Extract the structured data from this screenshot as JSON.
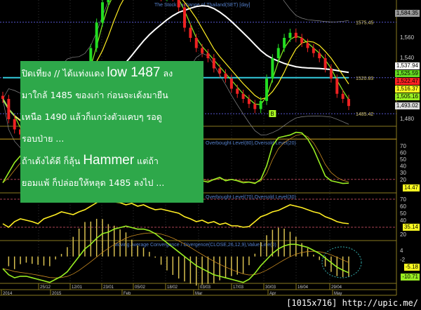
{
  "chart_data": {
    "type": "candlestick",
    "title": "The Stock Exchange of Thailand(SET) [day]",
    "x_tick_labels": [
      "25/12",
      "12/01",
      "23/01",
      "05/02",
      "18/02",
      "03/03",
      "17/03",
      "30/03",
      "16/04",
      "29/04"
    ],
    "period_labels": [
      "2014",
      "2015",
      "Feb",
      "Mar",
      "Apr",
      "May"
    ],
    "price": {
      "ylim": [
        1470,
        1600
      ],
      "y_ticks": [
        "1,560",
        "1,540",
        "1,480"
      ],
      "close": [
        1500,
        1480,
        1470,
        1465,
        1475,
        1490,
        1500,
        1505,
        1510,
        1520,
        1525,
        1530,
        1520,
        1515,
        1530,
        1550,
        1575,
        1595,
        1605,
        1610,
        1615,
        1612,
        1608,
        1610,
        1615,
        1612,
        1605,
        1600,
        1605,
        1600,
        1590,
        1570,
        1560,
        1550,
        1545,
        1540,
        1530,
        1525,
        1520,
        1510,
        1505,
        1500,
        1495,
        1490,
        1498,
        1520,
        1540,
        1550,
        1560,
        1565,
        1560,
        1555,
        1550,
        1545,
        1540,
        1530,
        1520,
        1505,
        1500,
        1493
      ],
      "levels": [
        {
          "label": "1575.45",
          "value": 1575.45
        },
        {
          "label": "1520.83",
          "value": 1520.83
        },
        {
          "label": "1485.42",
          "value": 1485.42
        }
      ],
      "value_tags": [
        {
          "label": "1,584.35",
          "value": 1584.35,
          "color": "#9a9a9a"
        },
        {
          "label": "1,537.94",
          "value": 1537.94,
          "color": "#ffffff"
        },
        {
          "label": "1,525.59",
          "value": 1525.59,
          "color": "#66dd22"
        },
        {
          "label": "1,522.47",
          "value": 1522.47,
          "color": "#ff2222"
        },
        {
          "label": "1,516.37",
          "value": 1516.37,
          "color": "#ffff22"
        },
        {
          "label": "1,505.16",
          "value": 1505.16,
          "color": "#99ee22"
        },
        {
          "label": "1,493.02",
          "value": 1493.02,
          "color": "#dddddd"
        }
      ],
      "signal_marker": {
        "label": "B",
        "index": 46
      }
    },
    "stochastic": {
      "title": "Overbought Level(80),Oversold Level(20)",
      "levels": [
        80,
        20
      ],
      "y_ticks": [
        "70",
        "60",
        "50",
        "40",
        "30",
        "20"
      ],
      "values": [
        15,
        30,
        45,
        55,
        60,
        50,
        40,
        35,
        30,
        25,
        30,
        50,
        70,
        85,
        90,
        85,
        80,
        75,
        70,
        60,
        50,
        40,
        35,
        30,
        28,
        25,
        22,
        20,
        25,
        22,
        18,
        22,
        20,
        25,
        18,
        16,
        20,
        23,
        18,
        20,
        18,
        15,
        16,
        14,
        20,
        40,
        70,
        82,
        84,
        86,
        90,
        89,
        80,
        65,
        45,
        25,
        18,
        16,
        14,
        14.47
      ],
      "last_label": "14.47"
    },
    "rsi": {
      "title": "Overbought Level(70),Oversold Level(30)",
      "levels": [
        70,
        30
      ],
      "y_ticks": [
        "70",
        "60",
        "50",
        "40",
        "20"
      ],
      "values": [
        35,
        30,
        38,
        42,
        40,
        38,
        35,
        42,
        45,
        48,
        52,
        50,
        48,
        52,
        55,
        60,
        65,
        70,
        68,
        66,
        65,
        62,
        64,
        60,
        62,
        58,
        55,
        56,
        54,
        52,
        50,
        45,
        42,
        38,
        40,
        36,
        38,
        34,
        36,
        32,
        32,
        30,
        31,
        38,
        45,
        48,
        52,
        54,
        58,
        62,
        60,
        58,
        55,
        52,
        50,
        45,
        42,
        38,
        36,
        35.14
      ],
      "last_label": "35.14"
    },
    "macd": {
      "title": "Moving Average Convergence / Divergence(CLOSE,26,12,9),Value Line(0)",
      "y_ticks": [
        "4",
        "-2"
      ],
      "values": [
        -8,
        -12,
        -14,
        -13,
        -13,
        -14,
        -15,
        -16,
        -17,
        -15,
        -13,
        -10,
        -5,
        0,
        5,
        8,
        12,
        15,
        16,
        18,
        19,
        20,
        19,
        18,
        18,
        17,
        15,
        12,
        9,
        6,
        3,
        0,
        -3,
        -6,
        -8,
        -10,
        -12,
        -13,
        -14,
        -15,
        -16,
        -17,
        -15,
        -11,
        -6,
        -2,
        2,
        5,
        7,
        8,
        8,
        7,
        6,
        4,
        2,
        -1,
        -4,
        -7,
        -9,
        -10.71
      ],
      "tags": [
        {
          "label": "-5.18",
          "color": "#ffff22"
        },
        {
          "label": "-10.71",
          "color": "#99ee22"
        }
      ]
    }
  },
  "overlay": {
    "lines": [
      {
        "pre": "ปิดเที่ยง // ได้แท่งแดง ",
        "big": "low 1487",
        "post": " ลง"
      },
      {
        "pre": "มาใกล้ 1485 ของเก่า ก่อนจะเด้งมายืน",
        "big": "",
        "post": ""
      },
      {
        "pre": "เหนือ 1490 แล้วก็แกว่งตัวแคบๆ รอดู",
        "big": "",
        "post": ""
      },
      {
        "pre": "รอบป่าย ...",
        "big": "",
        "post": ""
      },
      {
        "pre": "ถ้าเด้งได้ดี ก็ลุ้น ",
        "big": "Hammer",
        "post": " แต่ถ้า"
      },
      {
        "pre": "ยอมแพ้ ก็ปล่อยให้หลุด 1485 ลงไป ...",
        "big": "",
        "post": ""
      }
    ]
  },
  "watermark": "[1015x716] http://upic.me/"
}
